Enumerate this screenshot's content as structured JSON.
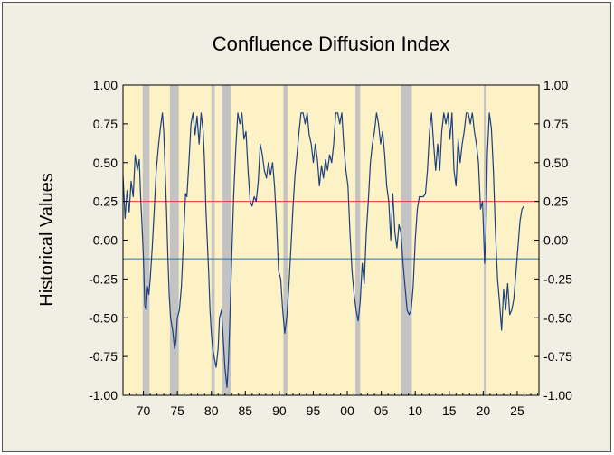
{
  "chart_data": {
    "type": "line",
    "title": "Confluence Diffusion Index",
    "ylabel": "Historical Values",
    "xlabel": "",
    "xlim": [
      1967.0,
      2028.2
    ],
    "ylim": [
      -1.0,
      1.0
    ],
    "y_ticks": [
      "1.00",
      "0.75",
      "0.50",
      "0.25",
      "0.00",
      "-0.25",
      "-0.50",
      "-0.75",
      "-1.00"
    ],
    "y_tick_values": [
      1.0,
      0.75,
      0.5,
      0.25,
      0.0,
      -0.25,
      -0.5,
      -0.75,
      -1.0
    ],
    "x_ticks": [
      "70",
      "75",
      "80",
      "85",
      "90",
      "95",
      "00",
      "05",
      "10",
      "15",
      "20",
      "25"
    ],
    "x_tick_values": [
      1970,
      1975,
      1980,
      1985,
      1990,
      1995,
      2000,
      2005,
      2010,
      2015,
      2020,
      2025
    ],
    "colors": {
      "plot_background": "#fdf2c6",
      "line": "#1b3f7e",
      "recession_band": "#c3c3c3",
      "upper_reference": "#e03a2a",
      "lower_reference": "#2e6f9c",
      "frame_background": "#f1efe3"
    },
    "reference_lines": [
      {
        "y": 0.25,
        "color": "#e03a2a"
      },
      {
        "y": -0.12,
        "color": "#2e6f9c"
      }
    ],
    "recessions": [
      [
        1969.9,
        1970.9
      ],
      [
        1973.9,
        1975.2
      ],
      [
        1980.0,
        1980.5
      ],
      [
        1981.5,
        1982.9
      ],
      [
        1990.6,
        1991.2
      ],
      [
        2001.2,
        2001.9
      ],
      [
        2007.9,
        2009.5
      ],
      [
        2020.1,
        2020.5
      ]
    ],
    "series": [
      {
        "values": [
          [
            1967.0,
            0.42
          ],
          [
            1967.3,
            0.14
          ],
          [
            1967.6,
            0.32
          ],
          [
            1967.9,
            0.18
          ],
          [
            1968.2,
            0.38
          ],
          [
            1968.5,
            0.28
          ],
          [
            1968.8,
            0.55
          ],
          [
            1969.1,
            0.45
          ],
          [
            1969.4,
            0.52
          ],
          [
            1969.6,
            0.28
          ],
          [
            1969.8,
            0.1
          ],
          [
            1970.0,
            -0.1
          ],
          [
            1970.2,
            -0.42
          ],
          [
            1970.4,
            -0.45
          ],
          [
            1970.6,
            -0.3
          ],
          [
            1970.8,
            -0.35
          ],
          [
            1971.0,
            -0.25
          ],
          [
            1971.3,
            -0.05
          ],
          [
            1971.6,
            0.2
          ],
          [
            1971.9,
            0.45
          ],
          [
            1972.2,
            0.6
          ],
          [
            1972.5,
            0.72
          ],
          [
            1972.8,
            0.82
          ],
          [
            1973.0,
            0.7
          ],
          [
            1973.2,
            0.45
          ],
          [
            1973.4,
            0.2
          ],
          [
            1973.6,
            -0.1
          ],
          [
            1973.8,
            -0.35
          ],
          [
            1974.0,
            -0.5
          ],
          [
            1974.3,
            -0.58
          ],
          [
            1974.6,
            -0.7
          ],
          [
            1974.8,
            -0.65
          ],
          [
            1975.0,
            -0.5
          ],
          [
            1975.3,
            -0.45
          ],
          [
            1975.6,
            -0.3
          ],
          [
            1975.9,
            0.0
          ],
          [
            1976.2,
            0.3
          ],
          [
            1976.4,
            0.28
          ],
          [
            1976.7,
            0.5
          ],
          [
            1977.0,
            0.75
          ],
          [
            1977.3,
            0.82
          ],
          [
            1977.6,
            0.68
          ],
          [
            1977.9,
            0.8
          ],
          [
            1978.2,
            0.62
          ],
          [
            1978.5,
            0.82
          ],
          [
            1978.8,
            0.7
          ],
          [
            1979.0,
            0.5
          ],
          [
            1979.2,
            0.2
          ],
          [
            1979.4,
            0.0
          ],
          [
            1979.6,
            -0.2
          ],
          [
            1979.8,
            -0.45
          ],
          [
            1980.0,
            -0.6
          ],
          [
            1980.2,
            -0.7
          ],
          [
            1980.4,
            -0.75
          ],
          [
            1980.7,
            -0.82
          ],
          [
            1981.0,
            -0.7
          ],
          [
            1981.2,
            -0.5
          ],
          [
            1981.5,
            -0.45
          ],
          [
            1981.7,
            -0.6
          ],
          [
            1982.0,
            -0.82
          ],
          [
            1982.3,
            -0.95
          ],
          [
            1982.5,
            -0.8
          ],
          [
            1982.7,
            -0.55
          ],
          [
            1983.0,
            -0.1
          ],
          [
            1983.3,
            0.3
          ],
          [
            1983.6,
            0.6
          ],
          [
            1983.9,
            0.82
          ],
          [
            1984.2,
            0.75
          ],
          [
            1984.5,
            0.82
          ],
          [
            1984.8,
            0.65
          ],
          [
            1985.1,
            0.7
          ],
          [
            1985.4,
            0.45
          ],
          [
            1985.7,
            0.25
          ],
          [
            1986.0,
            0.22
          ],
          [
            1986.3,
            0.28
          ],
          [
            1986.6,
            0.25
          ],
          [
            1986.9,
            0.38
          ],
          [
            1987.2,
            0.62
          ],
          [
            1987.5,
            0.55
          ],
          [
            1987.8,
            0.45
          ],
          [
            1988.1,
            0.4
          ],
          [
            1988.4,
            0.5
          ],
          [
            1988.7,
            0.42
          ],
          [
            1989.0,
            0.5
          ],
          [
            1989.3,
            0.35
          ],
          [
            1989.6,
            0.1
          ],
          [
            1989.9,
            -0.2
          ],
          [
            1990.2,
            -0.25
          ],
          [
            1990.5,
            -0.45
          ],
          [
            1990.8,
            -0.6
          ],
          [
            1991.1,
            -0.5
          ],
          [
            1991.4,
            -0.3
          ],
          [
            1991.7,
            -0.05
          ],
          [
            1992.0,
            0.2
          ],
          [
            1992.3,
            0.42
          ],
          [
            1992.6,
            0.55
          ],
          [
            1992.9,
            0.7
          ],
          [
            1993.2,
            0.82
          ],
          [
            1993.5,
            0.82
          ],
          [
            1993.8,
            0.75
          ],
          [
            1994.1,
            0.82
          ],
          [
            1994.4,
            0.68
          ],
          [
            1994.7,
            0.62
          ],
          [
            1995.0,
            0.5
          ],
          [
            1995.3,
            0.62
          ],
          [
            1995.6,
            0.52
          ],
          [
            1995.9,
            0.35
          ],
          [
            1996.2,
            0.48
          ],
          [
            1996.5,
            0.4
          ],
          [
            1996.8,
            0.52
          ],
          [
            1997.1,
            0.45
          ],
          [
            1997.4,
            0.55
          ],
          [
            1997.7,
            0.5
          ],
          [
            1998.0,
            0.62
          ],
          [
            1998.3,
            0.82
          ],
          [
            1998.6,
            0.82
          ],
          [
            1998.9,
            0.75
          ],
          [
            1999.2,
            0.82
          ],
          [
            1999.5,
            0.6
          ],
          [
            1999.8,
            0.45
          ],
          [
            2000.1,
            0.35
          ],
          [
            2000.4,
            0.05
          ],
          [
            2000.7,
            -0.2
          ],
          [
            2001.0,
            -0.35
          ],
          [
            2001.3,
            -0.45
          ],
          [
            2001.6,
            -0.52
          ],
          [
            2001.9,
            -0.4
          ],
          [
            2002.2,
            -0.15
          ],
          [
            2002.5,
            -0.28
          ],
          [
            2002.8,
            0.05
          ],
          [
            2003.1,
            0.25
          ],
          [
            2003.4,
            0.5
          ],
          [
            2003.7,
            0.62
          ],
          [
            2004.0,
            0.7
          ],
          [
            2004.3,
            0.82
          ],
          [
            2004.6,
            0.75
          ],
          [
            2004.9,
            0.62
          ],
          [
            2005.2,
            0.7
          ],
          [
            2005.5,
            0.55
          ],
          [
            2005.8,
            0.35
          ],
          [
            2006.1,
            0.25
          ],
          [
            2006.4,
            0.0
          ],
          [
            2006.7,
            0.3
          ],
          [
            2007.0,
            0.05
          ],
          [
            2007.3,
            -0.05
          ],
          [
            2007.6,
            0.1
          ],
          [
            2007.9,
            0.05
          ],
          [
            2008.2,
            -0.15
          ],
          [
            2008.5,
            -0.3
          ],
          [
            2008.8,
            -0.45
          ],
          [
            2009.1,
            -0.48
          ],
          [
            2009.4,
            -0.45
          ],
          [
            2009.7,
            -0.3
          ],
          [
            2010.0,
            0.0
          ],
          [
            2010.3,
            0.2
          ],
          [
            2010.6,
            0.28
          ],
          [
            2010.9,
            0.28
          ],
          [
            2011.2,
            0.28
          ],
          [
            2011.5,
            0.3
          ],
          [
            2011.8,
            0.45
          ],
          [
            2012.1,
            0.7
          ],
          [
            2012.4,
            0.82
          ],
          [
            2012.7,
            0.62
          ],
          [
            2013.0,
            0.45
          ],
          [
            2013.3,
            0.62
          ],
          [
            2013.6,
            0.45
          ],
          [
            2013.9,
            0.7
          ],
          [
            2014.2,
            0.82
          ],
          [
            2014.5,
            0.75
          ],
          [
            2014.8,
            0.82
          ],
          [
            2015.1,
            0.65
          ],
          [
            2015.4,
            0.82
          ],
          [
            2015.7,
            0.45
          ],
          [
            2016.0,
            0.35
          ],
          [
            2016.3,
            0.65
          ],
          [
            2016.6,
            0.5
          ],
          [
            2016.9,
            0.62
          ],
          [
            2017.2,
            0.7
          ],
          [
            2017.5,
            0.82
          ],
          [
            2017.8,
            0.82
          ],
          [
            2018.1,
            0.75
          ],
          [
            2018.4,
            0.82
          ],
          [
            2018.7,
            0.7
          ],
          [
            2019.0,
            0.62
          ],
          [
            2019.3,
            0.5
          ],
          [
            2019.6,
            0.2
          ],
          [
            2019.9,
            0.25
          ],
          [
            2020.2,
            -0.15
          ],
          [
            2020.4,
            0.05
          ],
          [
            2020.6,
            0.55
          ],
          [
            2020.9,
            0.82
          ],
          [
            2021.2,
            0.72
          ],
          [
            2021.5,
            0.45
          ],
          [
            2021.8,
            0.05
          ],
          [
            2022.1,
            -0.25
          ],
          [
            2022.4,
            -0.4
          ],
          [
            2022.7,
            -0.58
          ],
          [
            2023.0,
            -0.32
          ],
          [
            2023.3,
            -0.45
          ],
          [
            2023.6,
            -0.28
          ],
          [
            2023.9,
            -0.48
          ],
          [
            2024.2,
            -0.45
          ],
          [
            2024.5,
            -0.38
          ],
          [
            2024.8,
            -0.22
          ],
          [
            2025.1,
            -0.05
          ],
          [
            2025.4,
            0.12
          ],
          [
            2025.7,
            0.2
          ],
          [
            2026.0,
            0.22
          ]
        ]
      }
    ]
  }
}
